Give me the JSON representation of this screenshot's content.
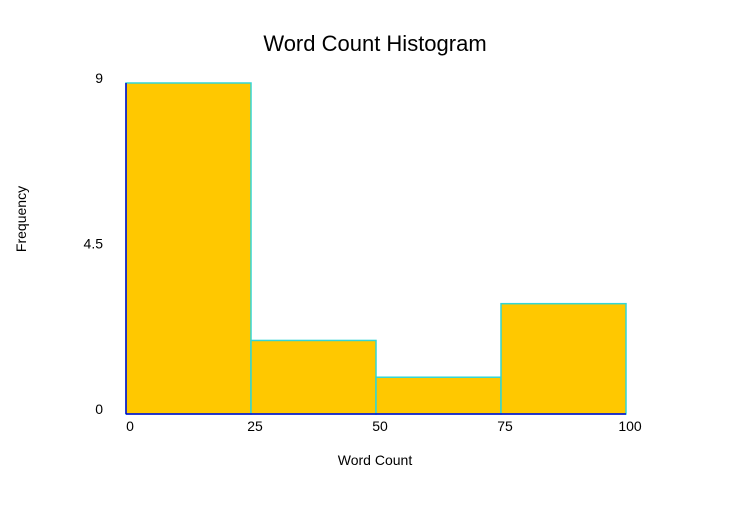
{
  "chart_data": {
    "type": "bar",
    "title": "Word Count Histogram",
    "xlabel": "Word Count",
    "ylabel": "Frequency",
    "bins": [
      {
        "start": 0,
        "end": 25,
        "value": 9
      },
      {
        "start": 25,
        "end": 50,
        "value": 2
      },
      {
        "start": 50,
        "end": 75,
        "value": 1
      },
      {
        "start": 75,
        "end": 100,
        "value": 3
      }
    ],
    "xticks": [
      0,
      25,
      50,
      75,
      100
    ],
    "yticks": [
      "0",
      "4.5",
      "9"
    ],
    "xlim": [
      0,
      100
    ],
    "ylim": [
      0,
      9
    ],
    "grid": false,
    "colors": {
      "bar_fill": "#FFC800",
      "bar_stroke": "#33D6D6",
      "axis": "#0000CC"
    }
  }
}
